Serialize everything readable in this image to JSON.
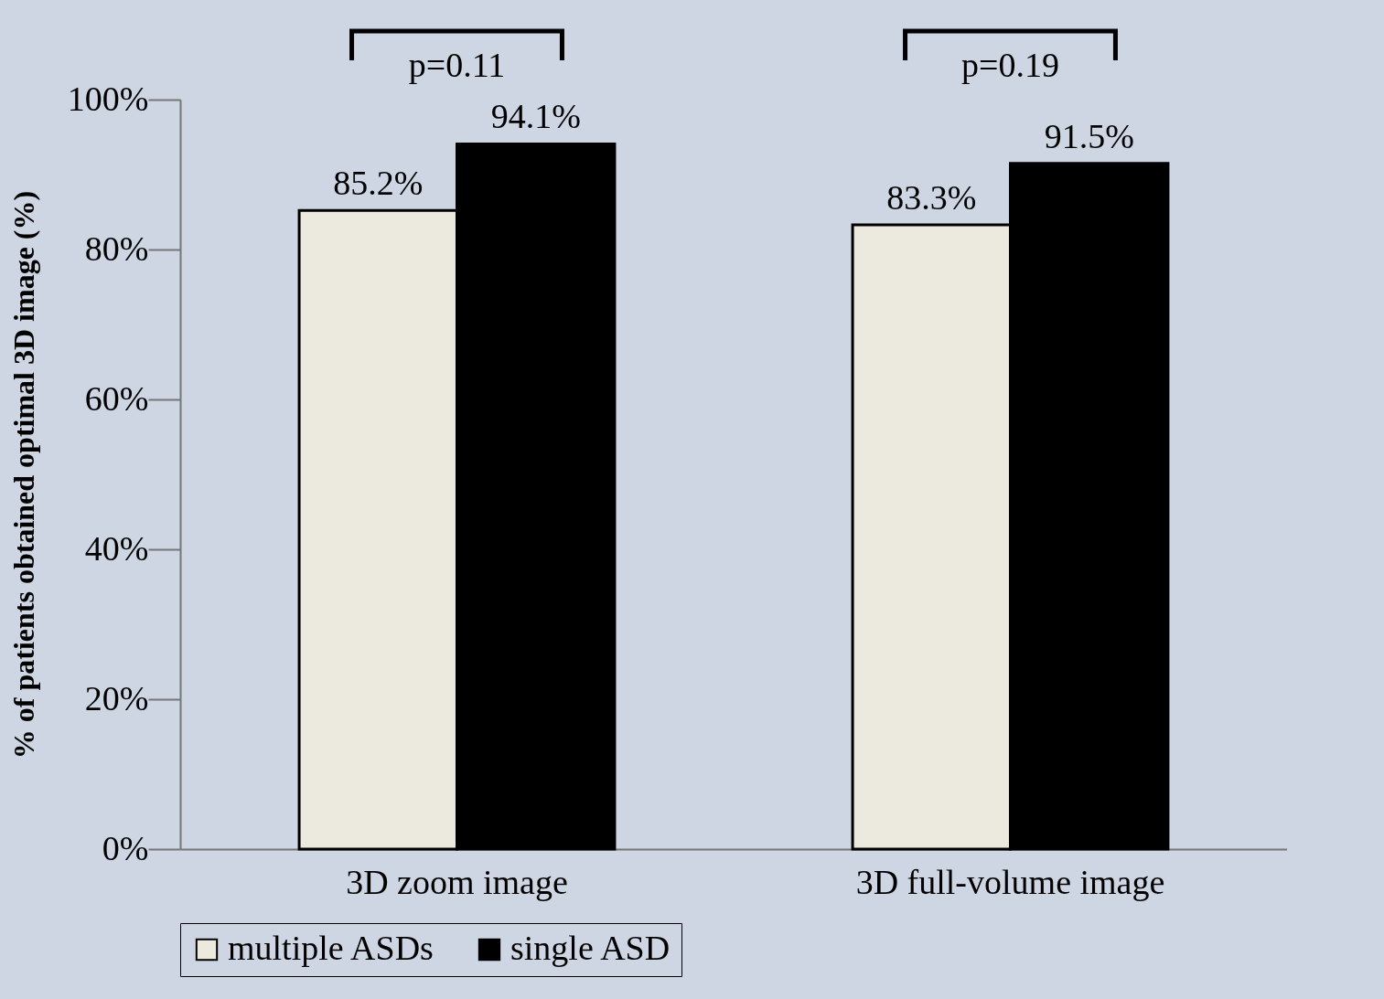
{
  "chart_data": {
    "type": "bar",
    "ylabel": "% of patients obtained optimal 3D image (%)",
    "categories": [
      "3D zoom image",
      "3D full-volume image"
    ],
    "series": [
      {
        "name": "multiple ASDs",
        "color": "#ece9df",
        "values": [
          85.2,
          83.3
        ]
      },
      {
        "name": "single ASD",
        "color": "#000000",
        "values": [
          94.1,
          91.5
        ]
      }
    ],
    "ylim": [
      0,
      100
    ],
    "yticks": [
      {
        "value": 0,
        "label": "0%"
      },
      {
        "value": 20,
        "label": "20%"
      },
      {
        "value": 40,
        "label": "40%"
      },
      {
        "value": 60,
        "label": "60%"
      },
      {
        "value": 80,
        "label": "80%"
      },
      {
        "value": 100,
        "label": "100%"
      }
    ],
    "value_labels": [
      [
        "85.2%",
        "83.3%"
      ],
      [
        "94.1%",
        "91.5%"
      ]
    ],
    "annotations": [
      "p=0.11",
      "p=0.19"
    ],
    "legend": "bottom",
    "grid": false
  }
}
